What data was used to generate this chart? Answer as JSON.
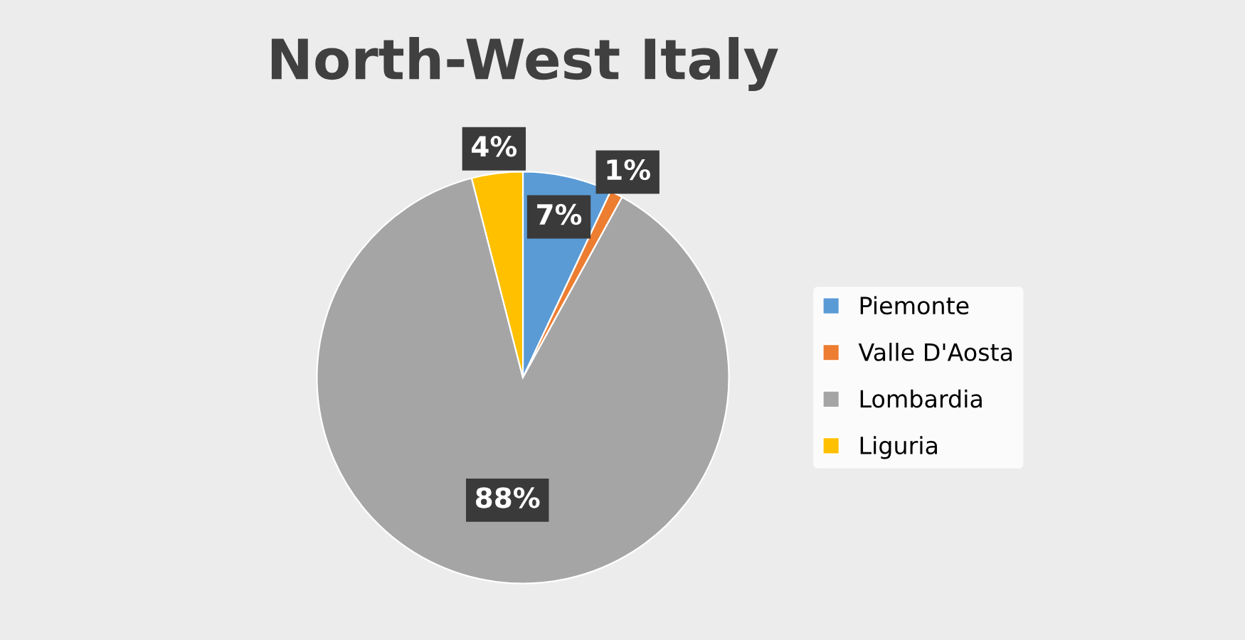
{
  "chart_data": {
    "type": "pie",
    "title": "North-West Italy",
    "categories": [
      "Piemonte",
      "Valle D'Aosta",
      "Lombardia",
      "Liguria"
    ],
    "values": [
      7,
      1,
      88,
      4
    ],
    "colors": [
      "#5b9bd5",
      "#ed7d31",
      "#a5a5a5",
      "#ffc000"
    ],
    "value_labels": [
      "7%",
      "1%",
      "88%",
      "4%"
    ],
    "legend": "right"
  }
}
